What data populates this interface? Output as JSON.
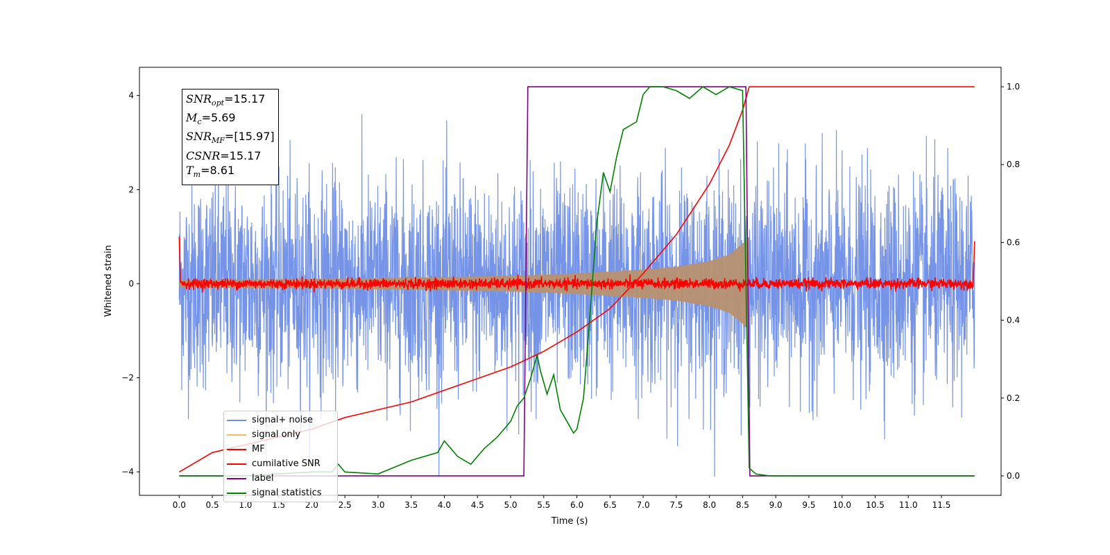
{
  "chart_data": {
    "type": "line",
    "xlabel": "Time (s)",
    "ylabel": "Whitened strain",
    "xlim": [
      -0.6,
      12.4
    ],
    "ylim": [
      -4.5,
      4.6
    ],
    "y2lim": [
      -0.05,
      1.05
    ],
    "x_ticks": [
      0.0,
      0.5,
      1.0,
      1.5,
      2.0,
      2.5,
      3.0,
      3.5,
      4.0,
      4.5,
      5.0,
      5.5,
      6.0,
      6.5,
      7.0,
      7.5,
      8.0,
      8.5,
      9.0,
      9.5,
      10.0,
      10.5,
      11.0,
      11.5
    ],
    "x_tick_labels": [
      "0.0",
      "0.5",
      "1.0",
      "1.5",
      "2.0",
      "2.5",
      "3.0",
      "3.5",
      "4.0",
      "4.5",
      "5.0",
      "5.5",
      "6.0",
      "6.5",
      "7.0",
      "7.5",
      "8.0",
      "8.5",
      "9.0",
      "9.5",
      "10.0",
      "10.5",
      "11.0",
      "11.5"
    ],
    "y_ticks": [
      -4,
      -2,
      0,
      2,
      4
    ],
    "y_tick_labels": [
      "−4",
      "−2",
      "0",
      "2",
      "4"
    ],
    "y2_ticks": [
      0.0,
      0.2,
      0.4,
      0.6,
      0.8,
      1.0
    ],
    "y2_tick_labels": [
      "0.0",
      "0.2",
      "0.4",
      "0.6",
      "0.8",
      "1.0"
    ],
    "legend_position": "lower-left",
    "series": [
      {
        "name": "signal+ noise",
        "color": "#6f8ee6",
        "kind": "noise",
        "sigma": 1.1,
        "x_range": [
          0.0,
          12.0
        ]
      },
      {
        "name": "signal only",
        "color": "#f5b860",
        "fill": "#b89070",
        "kind": "chirp_envelope",
        "x": [
          0.0,
          1.0,
          2.0,
          3.0,
          4.0,
          5.0,
          5.5,
          6.0,
          6.5,
          7.0,
          7.5,
          8.0,
          8.3,
          8.5,
          8.6
        ],
        "amplitude": [
          0.08,
          0.09,
          0.1,
          0.12,
          0.14,
          0.17,
          0.19,
          0.22,
          0.26,
          0.3,
          0.36,
          0.48,
          0.62,
          0.85,
          1.0
        ]
      },
      {
        "name": "MF",
        "color": "#ff0000",
        "kind": "mf_noise",
        "x_range": [
          0.0,
          12.0
        ]
      },
      {
        "name": "cumilative SNR",
        "color": "#ff0000",
        "axis": "right",
        "x": [
          0.0,
          0.5,
          1.0,
          1.5,
          2.0,
          2.5,
          3.0,
          3.5,
          4.0,
          4.5,
          5.0,
          5.5,
          6.0,
          6.5,
          7.0,
          7.5,
          8.0,
          8.3,
          8.5,
          8.6,
          12.0
        ],
        "values": [
          0.01,
          0.06,
          0.08,
          0.1,
          0.12,
          0.15,
          0.17,
          0.19,
          0.22,
          0.25,
          0.28,
          0.32,
          0.37,
          0.43,
          0.52,
          0.62,
          0.75,
          0.85,
          0.94,
          1.0,
          1.0
        ]
      },
      {
        "name": "label",
        "color": "#800080",
        "axis": "right",
        "x": [
          0.0,
          5.2,
          5.26,
          8.55,
          8.61,
          12.0
        ],
        "values": [
          0.0,
          0.0,
          1.0,
          1.0,
          0.0,
          0.0
        ]
      },
      {
        "name": "signal statistics",
        "color": "#008000",
        "axis": "right",
        "x": [
          0.0,
          1.0,
          2.0,
          2.3,
          2.4,
          2.5,
          3.0,
          3.5,
          3.9,
          4.0,
          4.2,
          4.4,
          4.6,
          4.8,
          5.0,
          5.1,
          5.2,
          5.3,
          5.4,
          5.45,
          5.55,
          5.65,
          5.75,
          5.85,
          5.95,
          6.0,
          6.1,
          6.2,
          6.3,
          6.4,
          6.5,
          6.6,
          6.7,
          6.8,
          6.9,
          7.0,
          7.1,
          7.3,
          7.5,
          7.7,
          7.9,
          8.1,
          8.3,
          8.5,
          8.6,
          8.7,
          8.9,
          9.5,
          12.0
        ],
        "values": [
          0.0,
          0.0,
          0.01,
          0.01,
          0.03,
          0.01,
          0.005,
          0.04,
          0.06,
          0.09,
          0.05,
          0.03,
          0.07,
          0.1,
          0.14,
          0.18,
          0.2,
          0.25,
          0.31,
          0.27,
          0.21,
          0.26,
          0.17,
          0.14,
          0.11,
          0.12,
          0.2,
          0.42,
          0.65,
          0.78,
          0.73,
          0.82,
          0.89,
          0.9,
          0.91,
          0.98,
          1.0,
          1.0,
          0.99,
          0.97,
          1.0,
          0.98,
          1.0,
          0.99,
          0.02,
          0.005,
          0.0,
          0.0,
          0.0
        ]
      }
    ],
    "annotation": {
      "snr_opt": "=15.17",
      "mc": "=5.69",
      "snr_mf": "=[15.97]",
      "csnr": "=15.17",
      "tm": "=8.61"
    }
  }
}
